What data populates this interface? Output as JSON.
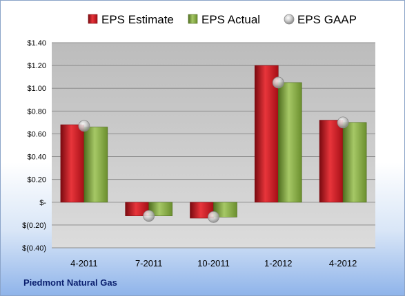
{
  "chart_data": {
    "type": "bar",
    "categories": [
      "4-2011",
      "7-2011",
      "10-2011",
      "1-2012",
      "4-2012"
    ],
    "series": [
      {
        "name": "EPS Estimate",
        "values": [
          0.68,
          -0.12,
          -0.14,
          1.2,
          0.72
        ]
      },
      {
        "name": "EPS Actual",
        "values": [
          0.66,
          -0.12,
          -0.13,
          1.05,
          0.7
        ]
      },
      {
        "name": "EPS GAAP",
        "values": [
          0.67,
          -0.12,
          -0.13,
          1.05,
          0.7
        ]
      }
    ],
    "ylim": [
      -0.4,
      1.4
    ],
    "yticks": [
      {
        "value": 1.4,
        "label": "$1.40"
      },
      {
        "value": 1.2,
        "label": "$1.20"
      },
      {
        "value": 1.0,
        "label": "$1.00"
      },
      {
        "value": 0.8,
        "label": "$0.80"
      },
      {
        "value": 0.6,
        "label": "$0.60"
      },
      {
        "value": 0.4,
        "label": "$0.40"
      },
      {
        "value": 0.2,
        "label": "$0.20"
      },
      {
        "value": 0.0,
        "label": "$-"
      },
      {
        "value": -0.2,
        "label": "$(0.20)"
      },
      {
        "value": -0.4,
        "label": "$(0.40)"
      }
    ],
    "grid": true,
    "legend_position": "top",
    "colors": {
      "estimate": "#c0111b",
      "actual": "#7fa539",
      "gaap": "#b8b8b8",
      "plot_bg": "#c0c0c0"
    }
  },
  "footer": {
    "company": "Piedmont Natural Gas"
  }
}
